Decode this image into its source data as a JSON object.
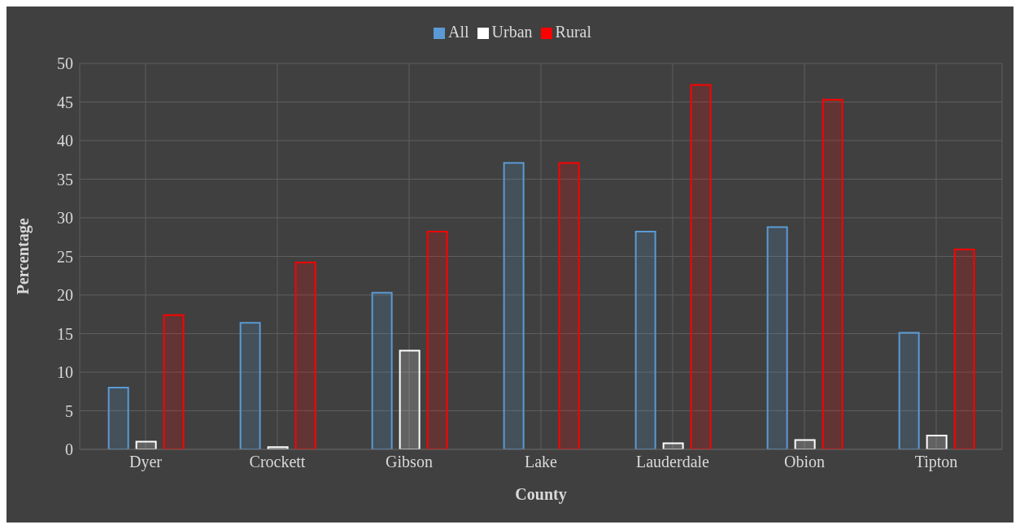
{
  "chart_data": {
    "type": "bar",
    "xlabel": "County",
    "ylabel": "Percentage",
    "categories": [
      "Dyer",
      "Crockett",
      "Gibson",
      "Lake",
      "Lauderdale",
      "Obion",
      "Tipton"
    ],
    "series": [
      {
        "name": "All",
        "color": "#5b9bd5",
        "values": [
          8.0,
          16.4,
          20.3,
          37.1,
          28.2,
          28.8,
          15.1
        ]
      },
      {
        "name": "Urban",
        "color": "#ffffff",
        "values": [
          1.0,
          0.3,
          12.8,
          0,
          0.8,
          1.2,
          1.8
        ]
      },
      {
        "name": "Rural",
        "color": "#ff0000",
        "values": [
          17.4,
          24.2,
          28.2,
          37.1,
          47.2,
          45.3,
          25.9
        ]
      }
    ],
    "ylim": [
      0,
      50
    ],
    "yticks": [
      0,
      5,
      10,
      15,
      20,
      25,
      30,
      35,
      40,
      45,
      50
    ],
    "grid": true,
    "legend": "top"
  }
}
